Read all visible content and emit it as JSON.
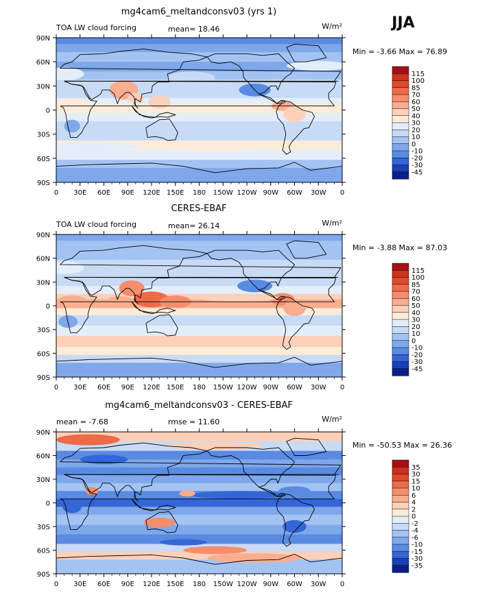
{
  "season": "JJA",
  "chart_data": [
    {
      "type": "heatmap",
      "title": "mg4cam6_meltandconsv03 (yrs 1)",
      "left_label": "TOA LW cloud forcing",
      "center_label": "mean=  18.46",
      "units": "W/m²",
      "minmax": "Min =   -3.66  Max =   76.89",
      "x_ticks": [
        "0",
        "30E",
        "60E",
        "90E",
        "120E",
        "150E",
        "180",
        "150W",
        "120W",
        "90W",
        "60W",
        "30W",
        "0"
      ],
      "y_ticks": [
        "90N",
        "60N",
        "30N",
        "0",
        "30S",
        "60S",
        "90S"
      ],
      "levels": [
        "115",
        "100",
        "85",
        "70",
        "60",
        "50",
        "40",
        "30",
        "20",
        "10",
        "0",
        "-10",
        "-20",
        "-30",
        "-45"
      ],
      "colors": [
        "#a50f15",
        "#c8341d",
        "#e04a2c",
        "#ee6a48",
        "#f68d6d",
        "#f9ae90",
        "#fcd0b9",
        "#fdebd9",
        "#e3eefa",
        "#c7dbf6",
        "#a3c3f2",
        "#7fa8ea",
        "#5a8be2",
        "#3466d6",
        "#1a40b8",
        "#0a1f8a"
      ],
      "mean": 18.46,
      "min": -3.66,
      "max": 76.89
    },
    {
      "type": "heatmap",
      "title": "CERES-EBAF",
      "left_label": "TOA LW cloud forcing",
      "center_label": "mean=  26.14",
      "units": "W/m²",
      "minmax": "Min =   -3.88  Max =   87.03",
      "x_ticks": [
        "0",
        "30E",
        "60E",
        "90E",
        "120E",
        "150E",
        "180",
        "150W",
        "120W",
        "90W",
        "60W",
        "30W",
        "0"
      ],
      "y_ticks": [
        "90N",
        "60N",
        "30N",
        "0",
        "30S",
        "60S",
        "90S"
      ],
      "levels": [
        "115",
        "100",
        "85",
        "70",
        "60",
        "50",
        "40",
        "30",
        "20",
        "10",
        "0",
        "-10",
        "-20",
        "-30",
        "-45"
      ],
      "colors": [
        "#a50f15",
        "#c8341d",
        "#e04a2c",
        "#ee6a48",
        "#f68d6d",
        "#f9ae90",
        "#fcd0b9",
        "#fdebd9",
        "#e3eefa",
        "#c7dbf6",
        "#a3c3f2",
        "#7fa8ea",
        "#5a8be2",
        "#3466d6",
        "#1a40b8",
        "#0a1f8a"
      ],
      "mean": 26.14,
      "min": -3.88,
      "max": 87.03
    },
    {
      "type": "heatmap",
      "title": "mg4cam6_meltandconsv03 - CERES-EBAF",
      "left_label": "mean =   -7.68",
      "center_label": "rmse =  11.60",
      "units": "W/m²",
      "minmax": "Min =  -50.53  Max =   26.36",
      "x_ticks": [
        "0",
        "30E",
        "60E",
        "90E",
        "120E",
        "150E",
        "180",
        "150W",
        "120W",
        "90W",
        "60W",
        "30W",
        "0"
      ],
      "y_ticks": [
        "90N",
        "60N",
        "30N",
        "0",
        "30S",
        "60S",
        "90S"
      ],
      "levels": [
        "35",
        "30",
        "15",
        "10",
        "6",
        "4",
        "2",
        "0",
        "-2",
        "-4",
        "-6",
        "-10",
        "-15",
        "-30",
        "-35"
      ],
      "colors": [
        "#a50f15",
        "#c8341d",
        "#e04a2c",
        "#ee6a48",
        "#f68d6d",
        "#f9ae90",
        "#fcd0b9",
        "#fdebd9",
        "#e3eefa",
        "#c7dbf6",
        "#a3c3f2",
        "#7fa8ea",
        "#5a8be2",
        "#3466d6",
        "#1a40b8",
        "#0a1f8a"
      ],
      "mean": -7.68,
      "rmse": 11.6,
      "min": -50.53,
      "max": 26.36
    }
  ]
}
